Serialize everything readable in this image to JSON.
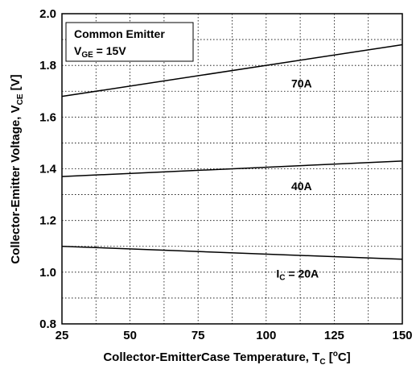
{
  "chart_data": {
    "type": "line",
    "xlabel": "Collector-EmitterCase Temperature, T",
    "xlabel_sub": "C",
    "xlabel_sup": "o",
    "xlabel_tail": "C]",
    "xlabel_bracket": " [",
    "ylabel": "Collector-Emitter Voltage, V",
    "ylabel_sub": "CE",
    "ylabel_tail": " [V]",
    "xlim": [
      25,
      150
    ],
    "ylim": [
      0.8,
      2.0
    ],
    "x_ticks": [
      "25",
      "50",
      "75",
      "100",
      "125",
      "150"
    ],
    "y_ticks": [
      "0.8",
      "1.0",
      "1.2",
      "1.4",
      "1.6",
      "1.8",
      "2.0"
    ],
    "grid": "dotted",
    "legend": {
      "line1": "Common Emitter",
      "line2_prefix": "V",
      "line2_sub": "GE",
      "line2_suffix": " = 15V",
      "placement": "top-left"
    },
    "series": [
      {
        "name": "70A",
        "x": [
          25,
          150
        ],
        "y": [
          1.68,
          1.88
        ],
        "label_x": 113,
        "label_y": 1.715
      },
      {
        "name": "40A",
        "x": [
          25,
          150
        ],
        "y": [
          1.37,
          1.43
        ],
        "label_x": 113,
        "label_y": 1.318
      },
      {
        "name_prefix": "I",
        "name_sub": "C",
        "name_suffix": " = 20A",
        "x": [
          25,
          150
        ],
        "y": [
          1.1,
          1.05
        ],
        "label_x": 111.5,
        "label_y": 0.98
      }
    ]
  }
}
